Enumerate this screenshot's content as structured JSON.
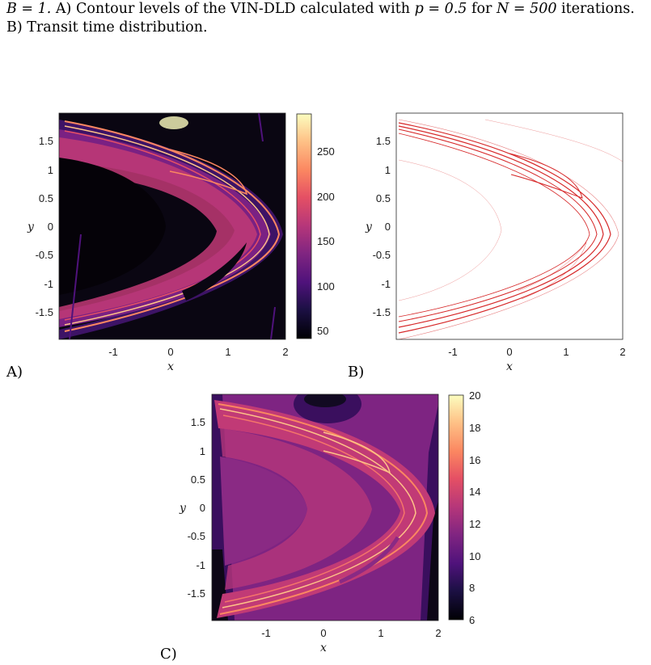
{
  "caption": {
    "line1_a": "B = 1.",
    "line1_b": " A) Contour levels of the VIN-DLD calculated with ",
    "line1_c": "p = 0.5",
    "line1_d": " for ",
    "line1_e": "N = 500",
    "line1_f": " iterations.",
    "line2": "B) Transit time distribution."
  },
  "panels": [
    {
      "label": "A)",
      "kind": "heatmap",
      "xlabel": "x",
      "ylabel": "y",
      "xticks": [
        "-1",
        "0",
        "1",
        "2"
      ],
      "yticks": [
        "1.5",
        "1",
        "0.5",
        "0",
        "-0.5",
        "-1",
        "-1.5"
      ],
      "colorbar_ticks": [
        "250",
        "200",
        "150",
        "100",
        "50"
      ],
      "colormap": "magma"
    },
    {
      "label": "B)",
      "kind": "contour",
      "xlabel": "x",
      "ylabel": "y",
      "xticks": [
        "-1",
        "0",
        "1",
        "2"
      ],
      "yticks": [
        "1.5",
        "1",
        "0.5",
        "0",
        "-0.5",
        "-1",
        "-1.5"
      ],
      "line_color": "#d62728"
    },
    {
      "label": "C)",
      "kind": "heatmap",
      "xlabel": "x",
      "ylabel": "y",
      "xticks": [
        "-1",
        "0",
        "1",
        "2"
      ],
      "yticks": [
        "1.5",
        "1",
        "0.5",
        "0",
        "-0.5",
        "-1",
        "-1.5"
      ],
      "colorbar_ticks": [
        "20",
        "18",
        "16",
        "14",
        "12",
        "10",
        "8",
        "6"
      ],
      "colormap": "magma"
    }
  ],
  "chart_data": [
    {
      "type": "heatmap",
      "title": "",
      "xlabel": "x",
      "ylabel": "y",
      "xlim": [
        -2,
        2
      ],
      "ylim": [
        -2,
        2
      ],
      "colorbar_range": [
        40,
        285
      ],
      "colorbar_ticks": [
        50,
        100,
        150,
        200,
        250
      ]
    },
    {
      "type": "line",
      "title": "",
      "xlabel": "x",
      "ylabel": "y",
      "xlim": [
        -2,
        2
      ],
      "ylim": [
        -2,
        2
      ]
    },
    {
      "type": "heatmap",
      "title": "",
      "xlabel": "x",
      "ylabel": "y",
      "xlim": [
        -2,
        2
      ],
      "ylim": [
        -2,
        2
      ],
      "colorbar_range": [
        6,
        20
      ],
      "colorbar_ticks": [
        6,
        8,
        10,
        12,
        14,
        16,
        18,
        20
      ]
    }
  ]
}
